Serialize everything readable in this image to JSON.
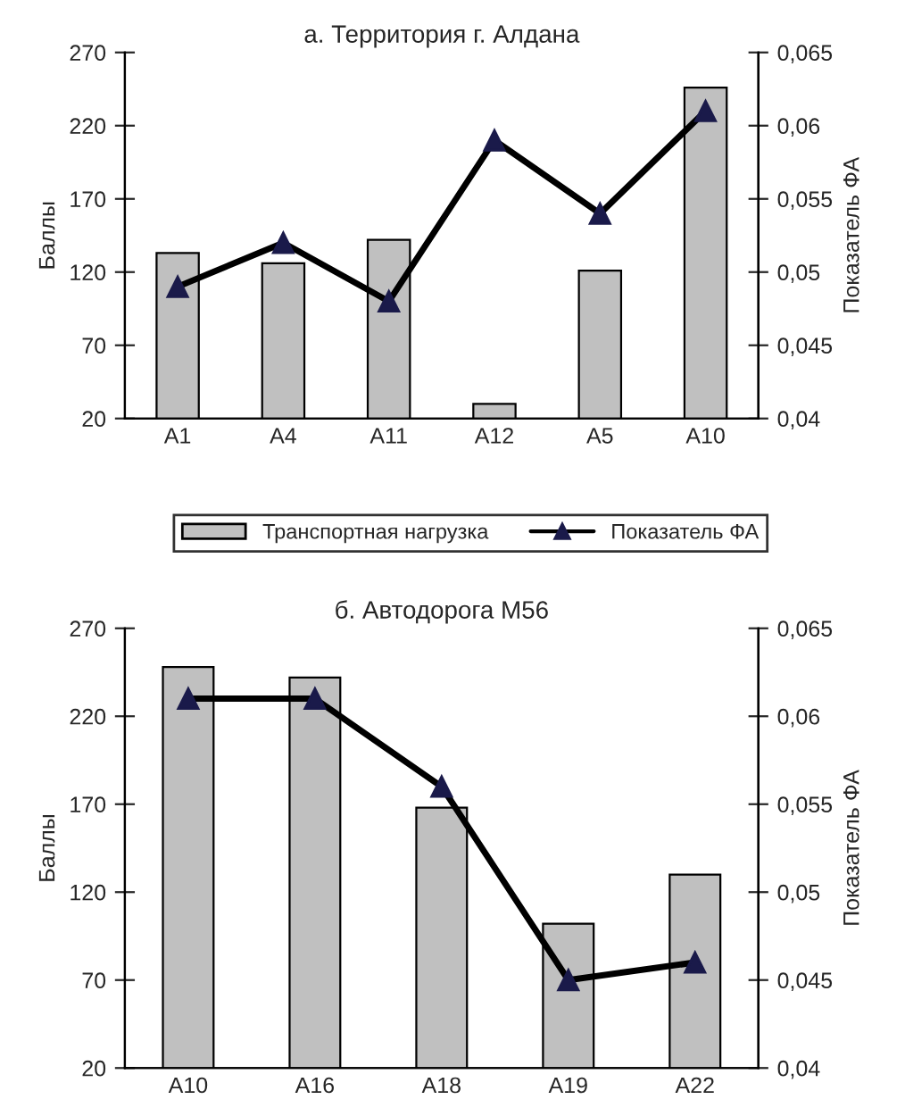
{
  "chart_data": [
    {
      "type": "bar",
      "title": "а. Территория г. Алдана",
      "ylabel": "Баллы",
      "y2label": "Показатель ФА",
      "categories": [
        "А1",
        "А4",
        "А11",
        "А12",
        "А5",
        "А10"
      ],
      "series": [
        {
          "name": "Транспортная нагрузка",
          "color": "#c0c0c0",
          "values": [
            133,
            126,
            142,
            30,
            121,
            246
          ]
        },
        {
          "name": "Показатель ФА",
          "type": "line",
          "axis": "y2",
          "color": "#000000",
          "marker": "triangle",
          "values": [
            0.049,
            0.052,
            0.048,
            0.059,
            0.054,
            0.061
          ]
        }
      ],
      "ylim": [
        20,
        270
      ],
      "yticks": [
        20,
        70,
        120,
        170,
        220,
        270
      ],
      "y2lim": [
        0.04,
        0.065
      ],
      "y2ticks": [
        {
          "value": 0.04,
          "label": "0,04"
        },
        {
          "value": 0.045,
          "label": "0,045"
        },
        {
          "value": 0.05,
          "label": "0,05"
        },
        {
          "value": 0.055,
          "label": "0,055"
        },
        {
          "value": 0.06,
          "label": "0,06"
        },
        {
          "value": 0.065,
          "label": "0,065"
        }
      ],
      "grid": false,
      "legend": "bottom"
    },
    {
      "type": "bar",
      "title": "б. Автодорога М56",
      "ylabel": "Баллы",
      "y2label": "Показатель ФА",
      "categories": [
        "А10",
        "А16",
        "А18",
        "А19",
        "А22"
      ],
      "series": [
        {
          "color": "#c0c0c0",
          "values": [
            248,
            242,
            168,
            102,
            130
          ]
        },
        {
          "type": "line",
          "axis": "y2",
          "color": "#000000",
          "marker": "triangle",
          "values": [
            0.061,
            0.061,
            0.056,
            0.045,
            0.046
          ]
        }
      ],
      "ylim": [
        20,
        270
      ],
      "yticks": [
        20,
        70,
        120,
        170,
        220,
        270
      ],
      "y2lim": [
        0.04,
        0.065
      ],
      "y2ticks": [
        {
          "value": 0.04,
          "label": "0,04"
        },
        {
          "value": 0.045,
          "label": "0,045"
        },
        {
          "value": 0.05,
          "label": "0,05"
        },
        {
          "value": 0.055,
          "label": "0,055"
        },
        {
          "value": 0.06,
          "label": "0,06"
        },
        {
          "value": 0.065,
          "label": "0,065"
        }
      ],
      "grid": false,
      "legend": false
    }
  ]
}
